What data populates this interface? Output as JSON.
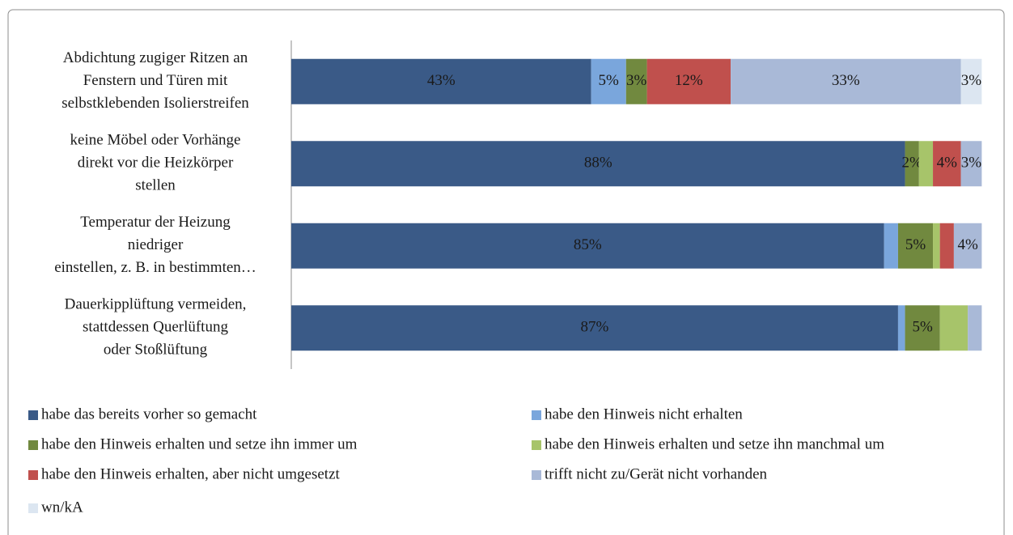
{
  "chart_data": {
    "type": "stacked-bar-horizontal",
    "categories": [
      [
        "Abdichtung zugiger Ritzen an",
        "Fenstern und Türen mit",
        "selbstklebenden Isolierstreifen"
      ],
      [
        "keine Möbel oder Vorhänge",
        "direkt vor die Heizkörper",
        "stellen"
      ],
      [
        "Temperatur der Heizung",
        "niedriger",
        "einstellen, z. B. in bestimmten…"
      ],
      [
        "Dauerkipplüftung vermeiden,",
        "stattdessen Querlüftung",
        "oder Stoßlüftung"
      ]
    ],
    "xlim": [
      0,
      100
    ],
    "series": [
      {
        "name": "habe das bereits vorher so gemacht",
        "color": "#3a5a87",
        "values": [
          43,
          88,
          85,
          87
        ],
        "value_labels": [
          "43%",
          "88%",
          "85%",
          "87%"
        ]
      },
      {
        "name": "habe den Hinweis nicht erhalten",
        "color": "#7aa6dc",
        "values": [
          5,
          0,
          2,
          1
        ],
        "value_labels": [
          "5%",
          null,
          null,
          null
        ]
      },
      {
        "name": "habe den Hinweis erhalten und setze ihn immer um",
        "color": "#71893f",
        "values": [
          3,
          2,
          5,
          5
        ],
        "value_labels": [
          "3%",
          "2%",
          "5%",
          "5%"
        ]
      },
      {
        "name": "habe den Hinweis erhalten und setze ihn manchmal um",
        "color": "#a7c46a",
        "values": [
          0,
          2,
          1,
          4
        ],
        "value_labels": [
          null,
          null,
          null,
          null
        ]
      },
      {
        "name": "habe den Hinweis erhalten, aber nicht umgesetzt",
        "color": "#c0504d",
        "values": [
          12,
          4,
          2,
          0
        ],
        "value_labels": [
          "12%",
          "4%",
          null,
          null
        ]
      },
      {
        "name": "trifft nicht zu/Gerät nicht vorhanden",
        "color": "#a9b9d7",
        "values": [
          33,
          3,
          4,
          2
        ],
        "value_labels": [
          "33%",
          "3%",
          "4%",
          null
        ]
      },
      {
        "name": "wn/kA",
        "color": "#dce6f1",
        "values": [
          3,
          0,
          0,
          0
        ],
        "value_labels": [
          "3%",
          null,
          null,
          null
        ]
      }
    ],
    "legend": "bottom"
  }
}
